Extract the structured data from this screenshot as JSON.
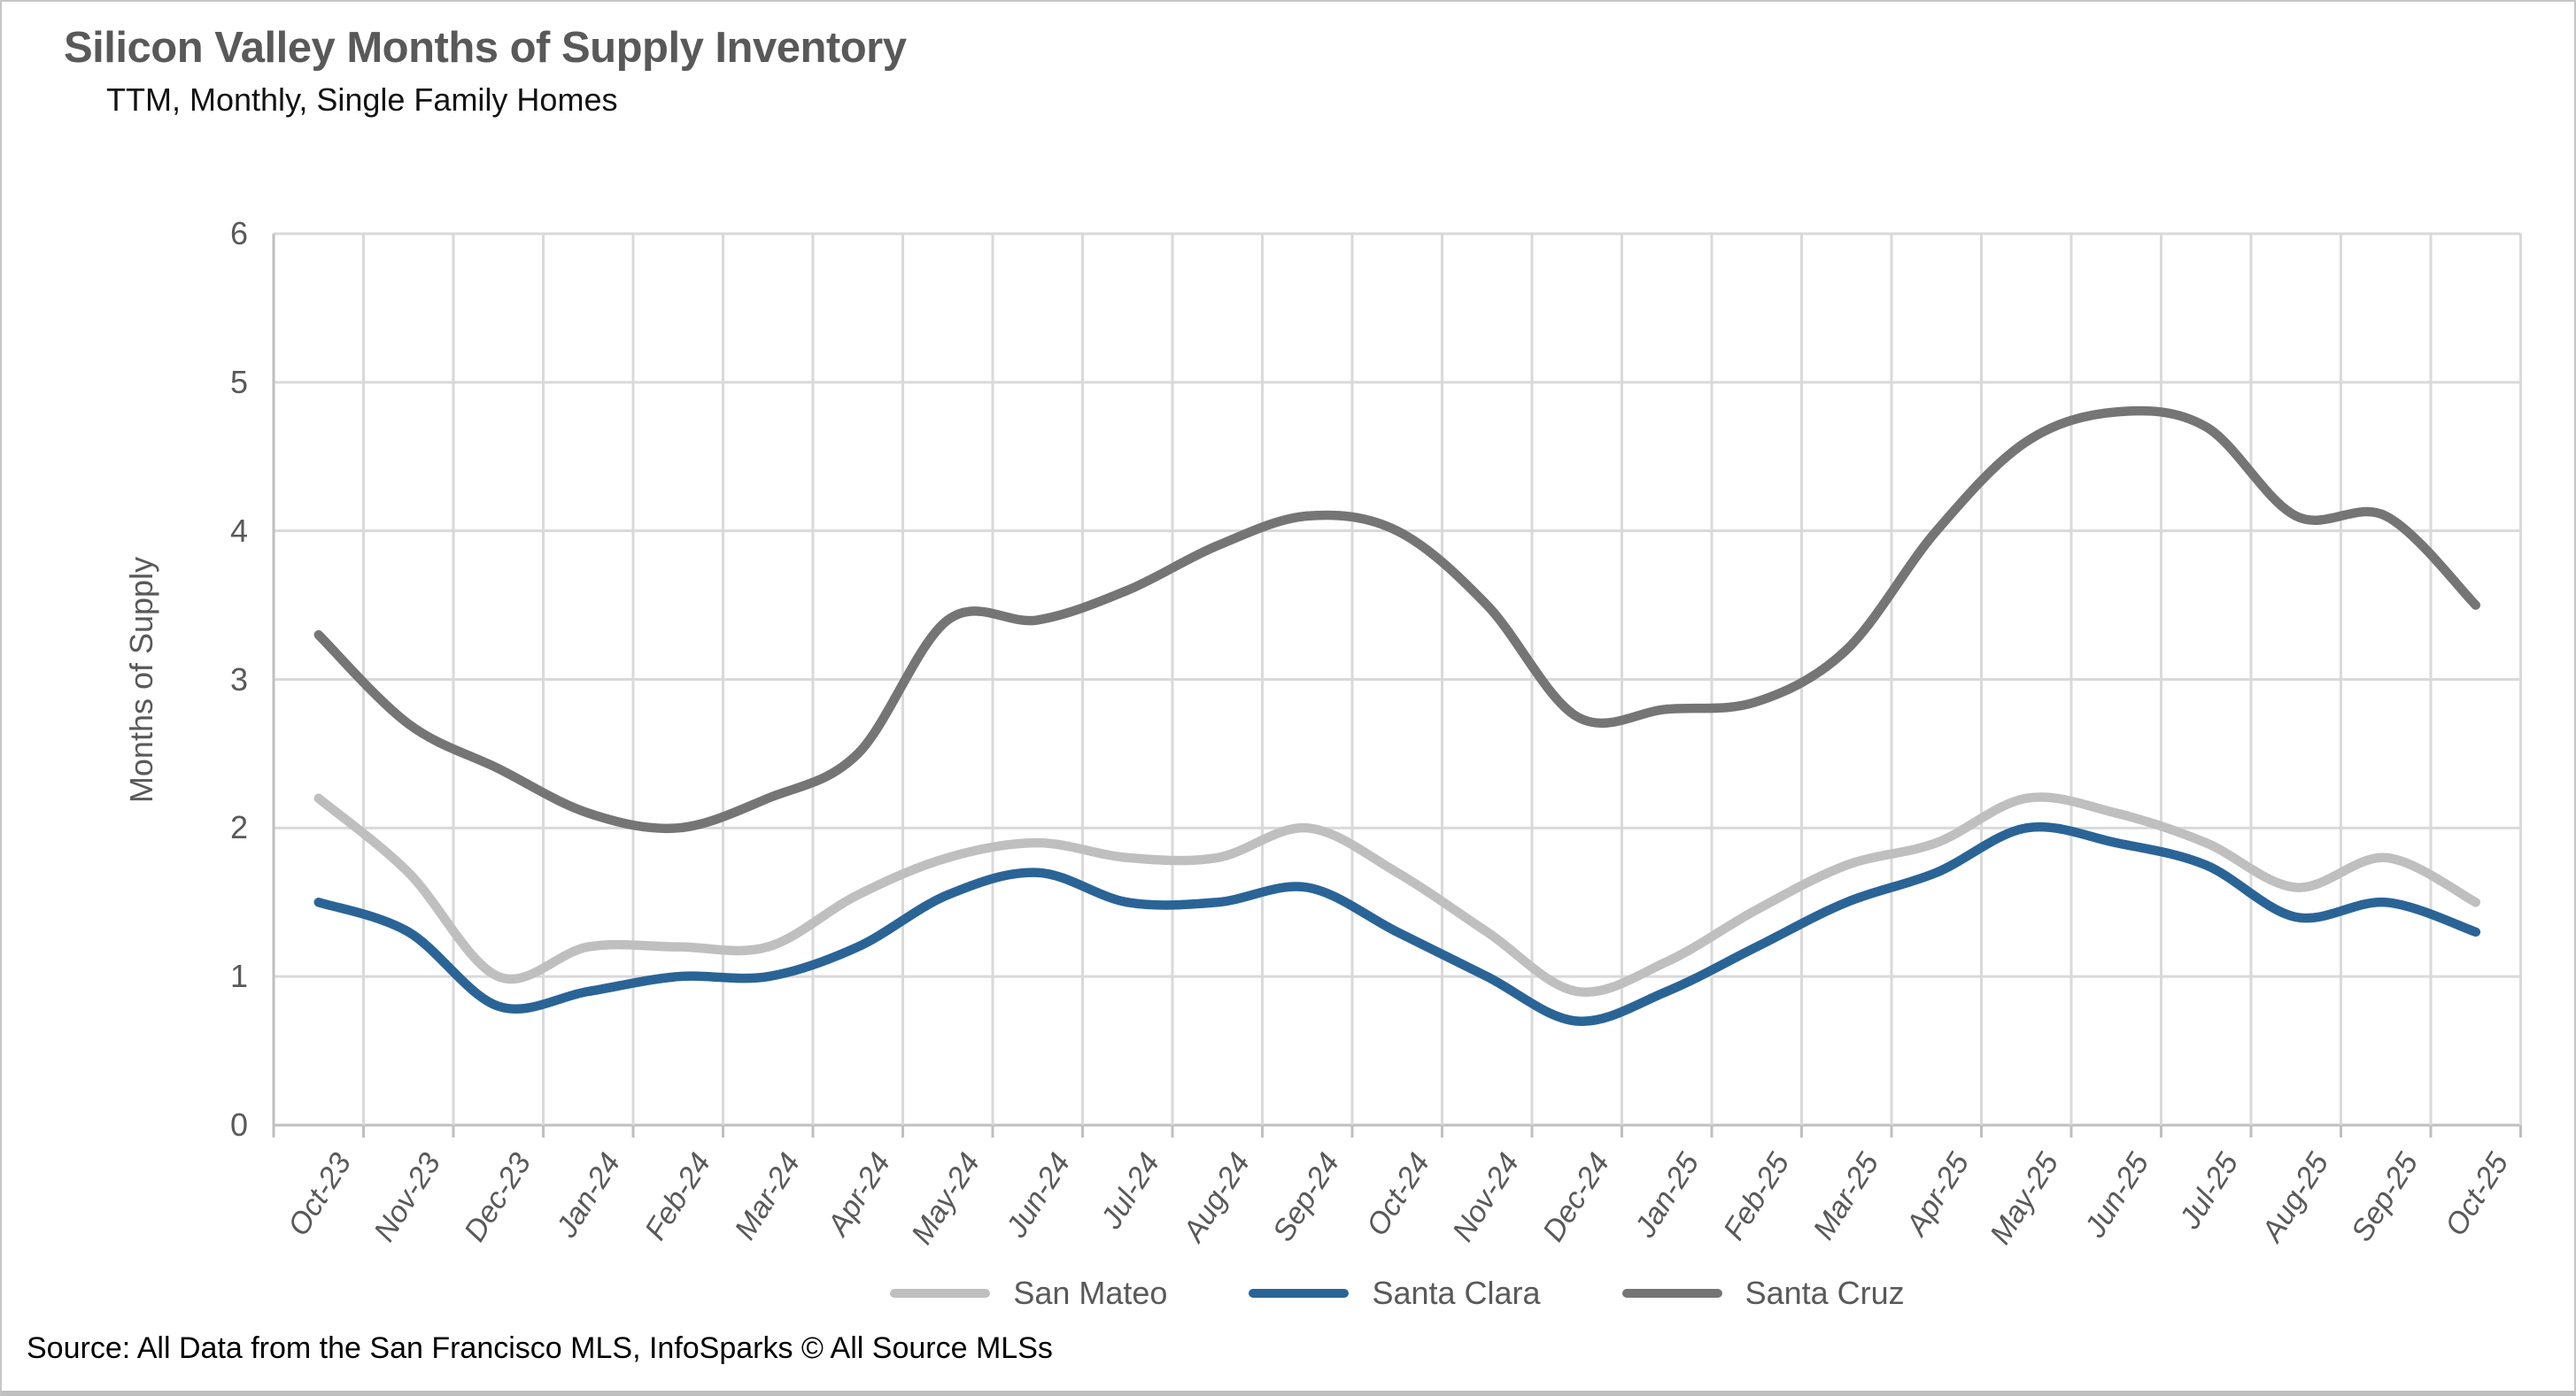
{
  "page": {
    "title": "Silicon Valley Months of Supply Inventory",
    "subtitle": "TTM, Monthly, Single Family Homes",
    "source": "Source: All Data from the San Francisco MLS, InfoSparks © All Source MLSs"
  },
  "colors": {
    "title_text": "#595959",
    "axis_text": "#595959",
    "gridline": "#d9d9d9",
    "axis_line": "#bfbfbf"
  },
  "chart_data": {
    "type": "line",
    "title": "Silicon Valley Months of Supply Inventory",
    "subtitle": "TTM, Monthly, Single Family Homes",
    "xlabel": "",
    "ylabel": "Months of Supply",
    "ylim": [
      0,
      6
    ],
    "yticks": [
      6,
      5,
      4,
      3,
      2,
      1,
      0
    ],
    "grid": true,
    "legend_position": "bottom",
    "smooth": true,
    "categories": [
      "Oct-23",
      "Nov-23",
      "Dec-23",
      "Jan-24",
      "Feb-24",
      "Mar-24",
      "Apr-24",
      "May-24",
      "Jun-24",
      "Jul-24",
      "Aug-24",
      "Sep-24",
      "Oct-24",
      "Nov-24",
      "Dec-24",
      "Jan-25",
      "Feb-25",
      "Mar-25",
      "Apr-25",
      "May-25",
      "Jun-25",
      "Jul-25",
      "Aug-25",
      "Sep-25",
      "Oct-25"
    ],
    "series": [
      {
        "name": "San Mateo",
        "color": "#bfbfbf",
        "values": [
          2.2,
          1.7,
          1.0,
          1.2,
          1.2,
          1.2,
          1.55,
          1.8,
          1.9,
          1.8,
          1.8,
          2.0,
          1.7,
          1.3,
          0.9,
          1.1,
          1.45,
          1.75,
          1.9,
          2.2,
          2.1,
          1.9,
          1.6,
          1.8,
          1.5
        ]
      },
      {
        "name": "Santa Clara",
        "color": "#2a6496",
        "values": [
          1.5,
          1.3,
          0.8,
          0.9,
          1.0,
          1.0,
          1.2,
          1.55,
          1.7,
          1.5,
          1.5,
          1.6,
          1.3,
          1.0,
          0.7,
          0.9,
          1.2,
          1.5,
          1.7,
          2.0,
          1.9,
          1.75,
          1.4,
          1.5,
          1.3
        ]
      },
      {
        "name": "Santa Cruz",
        "color": "#757575",
        "values": [
          3.3,
          2.7,
          2.4,
          2.1,
          2.0,
          2.2,
          2.5,
          3.4,
          3.4,
          3.6,
          3.9,
          4.1,
          4.0,
          3.5,
          2.75,
          2.8,
          2.85,
          3.2,
          4.0,
          4.6,
          4.8,
          4.7,
          4.1,
          4.1,
          3.5
        ]
      }
    ]
  }
}
